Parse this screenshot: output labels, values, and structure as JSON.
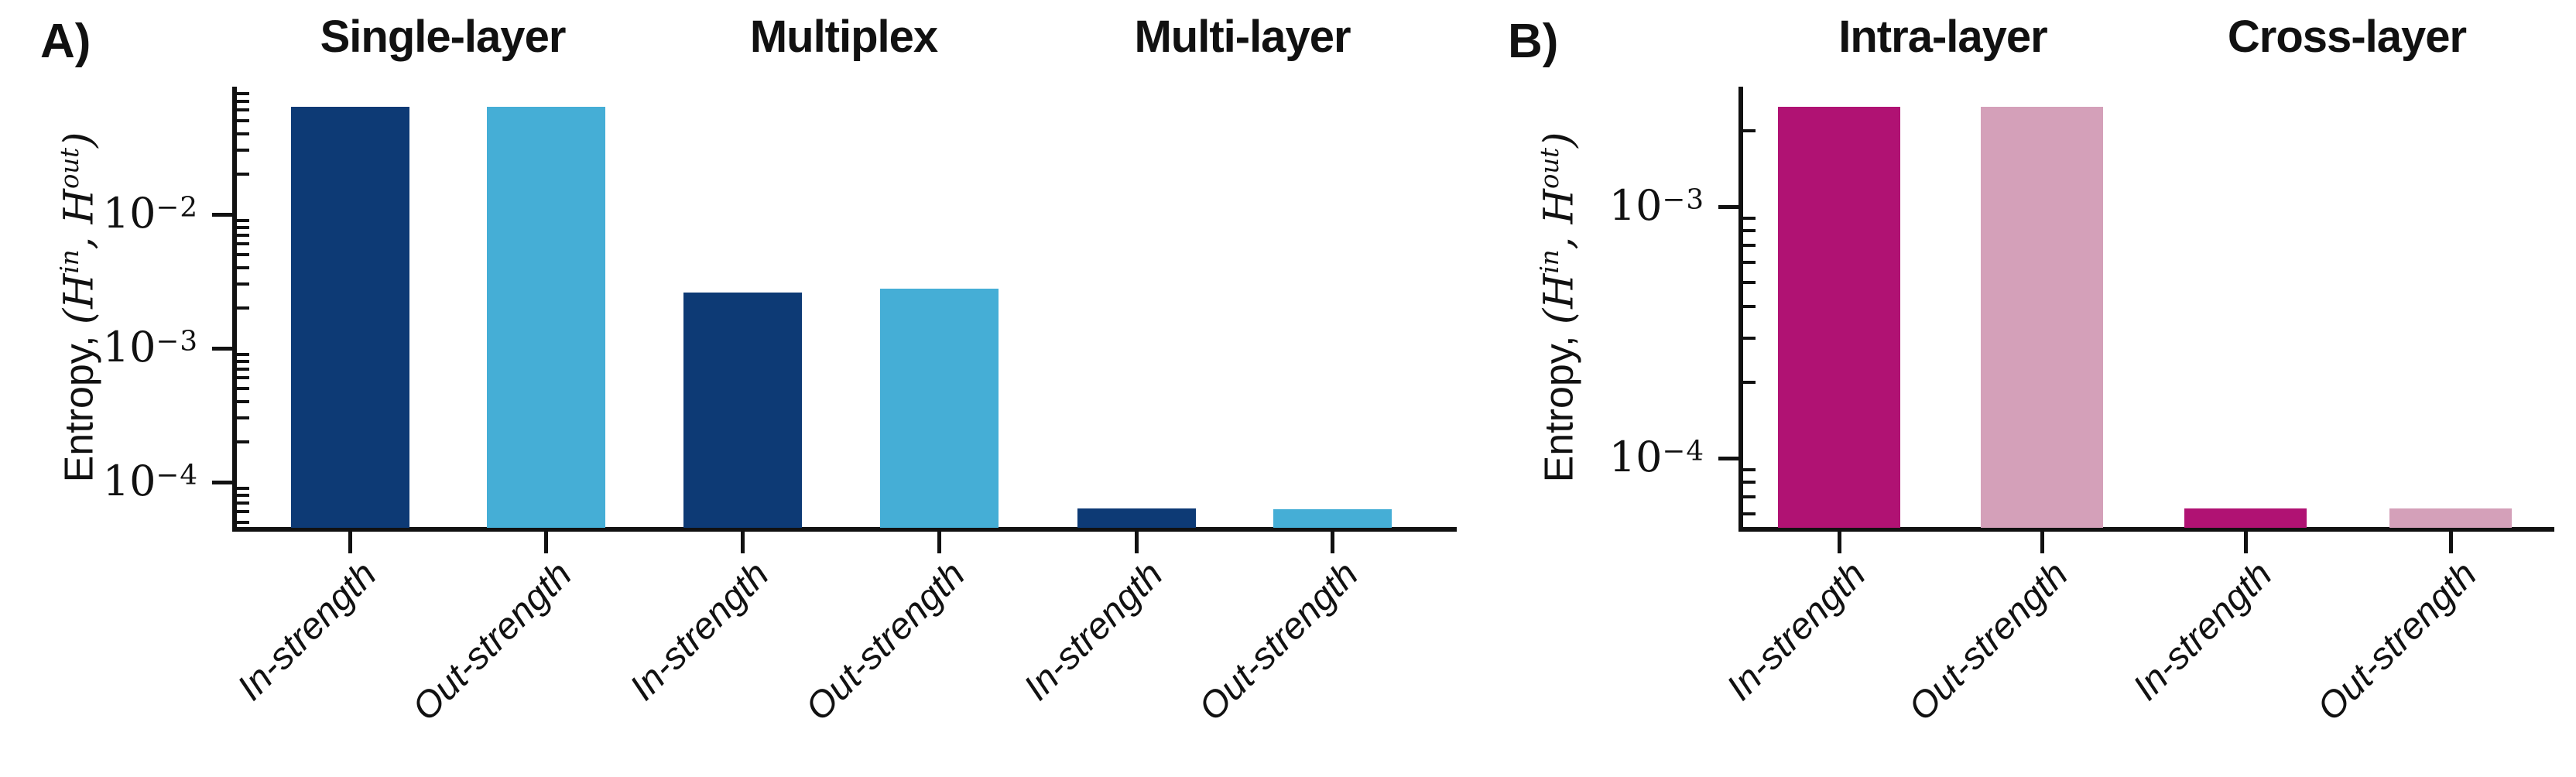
{
  "figure": {
    "background": "#ffffff",
    "text_color": "#111111",
    "panels": [
      {
        "label": "A)",
        "ylabel": {
          "prefix": "Entropy, ",
          "open": "(",
          "h1": "H",
          "sup_in": "in",
          "sep": ", ",
          "h2": "H",
          "sup_out": "out",
          "close": ")"
        }
      },
      {
        "label": "B)",
        "ylabel": {
          "prefix": "Entropy, ",
          "open": "(",
          "h1": "H",
          "sup_in": "in",
          "sep": ", ",
          "h2": "H",
          "sup_out": "out",
          "close": ")"
        }
      }
    ]
  },
  "chart_data": [
    {
      "type": "bar",
      "yscale": "log",
      "panel": "A",
      "group_titles": [
        "Single-layer",
        "Multiplex",
        "Multi-layer"
      ],
      "categories": [
        "In-strength",
        "Out-strength",
        "In-strength",
        "Out-strength",
        "In-strength",
        "Out-strength"
      ],
      "values": [
        0.064,
        0.064,
        0.0026,
        0.0028,
        6.4e-05,
        6.3e-05
      ],
      "bar_colors": [
        "#0d3a75",
        "#45aed6",
        "#0d3a75",
        "#45aed6",
        "#0d3a75",
        "#45aed6"
      ],
      "color_legend": {
        "in_strength": "#0d3a75",
        "out_strength": "#45aed6"
      },
      "ylabel": "Entropy, (H^in, H^out)",
      "ylim": [
        4.5e-05,
        0.09
      ],
      "ytick_exponents": [
        -2,
        -3,
        -4
      ],
      "grid": false,
      "legend": "none"
    },
    {
      "type": "bar",
      "yscale": "log",
      "panel": "B",
      "group_titles": [
        "Intra-layer",
        "Cross-layer"
      ],
      "categories": [
        "In-strength",
        "Out-strength",
        "In-strength",
        "Out-strength"
      ],
      "values": [
        0.0025,
        0.0025,
        6.3e-05,
        6.3e-05
      ],
      "bar_colors": [
        "#b01273",
        "#d4a0b9",
        "#b01273",
        "#d4a0b9"
      ],
      "color_legend": {
        "in_strength": "#b01273",
        "out_strength": "#d4a0b9"
      },
      "ylabel": "Entropy, (H^in, H^out)",
      "ylim": [
        5.2e-05,
        0.003
      ],
      "ytick_exponents": [
        -3,
        -4
      ],
      "grid": false,
      "legend": "none"
    }
  ]
}
